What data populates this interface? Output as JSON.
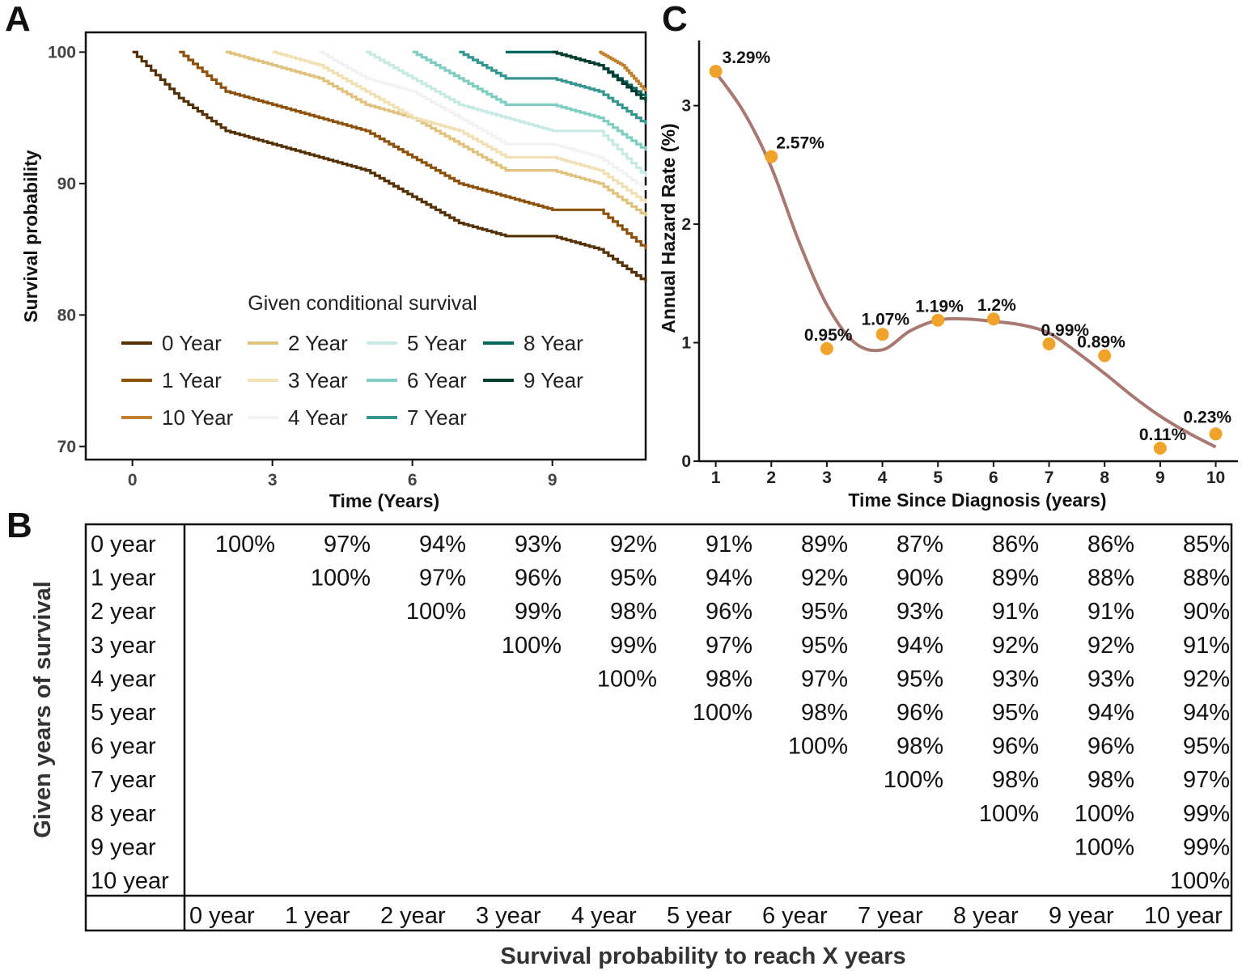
{
  "figure": {
    "panel_a_letter": "A",
    "panel_b_letter": "B",
    "panel_c_letter": "C"
  },
  "chart_data": [
    {
      "id": "A",
      "type": "line",
      "subtype": "kaplan-meier conditional survival curves",
      "xlabel": "Time (Years)",
      "ylabel": "Survival probability",
      "xlim": [
        -1,
        11
      ],
      "ylim": [
        69,
        101.5
      ],
      "xticks": [
        "0",
        "3",
        "6",
        "9"
      ],
      "yticks": [
        "100",
        "90",
        "80",
        "70"
      ],
      "legend_title": "Given conditional survival",
      "legend_position": "bottom-center inside plot",
      "series": [
        {
          "name": "0 Year",
          "color": "#543005",
          "x": [
            0,
            1,
            2,
            3,
            4,
            5,
            6,
            7,
            8,
            9,
            10,
            11
          ],
          "y": [
            100,
            96.5,
            94,
            93,
            92,
            91,
            89,
            87,
            86,
            86,
            85,
            82.5
          ]
        },
        {
          "name": "1 Year",
          "color": "#8c510a",
          "x": [
            1,
            2,
            3,
            4,
            5,
            6,
            7,
            8,
            9,
            10,
            11
          ],
          "y": [
            100,
            97,
            96,
            95,
            94,
            92,
            90,
            89,
            88,
            88,
            85
          ]
        },
        {
          "name": "10 Year",
          "color": "#bf812d",
          "x": [
            10,
            10.5,
            11
          ],
          "y": [
            100,
            99,
            97
          ]
        },
        {
          "name": "2 Year",
          "color": "#dfc27d",
          "x": [
            2,
            3,
            4,
            5,
            6,
            7,
            8,
            9,
            10,
            11
          ],
          "y": [
            100,
            99,
            98,
            96,
            95,
            93,
            91,
            91,
            90,
            87.5
          ]
        },
        {
          "name": "3 Year",
          "color": "#f2e0b5",
          "x": [
            3,
            4,
            5,
            6,
            7,
            8,
            9,
            10,
            11
          ],
          "y": [
            100,
            99,
            97,
            95,
            94,
            92,
            92,
            91,
            88.5
          ]
        },
        {
          "name": "4 Year",
          "color": "#f2f2f2",
          "x": [
            4,
            5,
            6,
            7,
            8,
            9,
            10,
            11
          ],
          "y": [
            100,
            98,
            97,
            95,
            93,
            93,
            92,
            89.5
          ]
        },
        {
          "name": "5 Year",
          "color": "#c7eae5",
          "x": [
            5,
            6,
            7,
            8,
            9,
            10,
            11
          ],
          "y": [
            100,
            98,
            96,
            95,
            94,
            94,
            90.5
          ]
        },
        {
          "name": "6 Year",
          "color": "#80cdc1",
          "x": [
            6,
            7,
            8,
            9,
            10,
            11
          ],
          "y": [
            100,
            98,
            96,
            96,
            95,
            92.5
          ]
        },
        {
          "name": "7 Year",
          "color": "#35978f",
          "x": [
            7,
            8,
            9,
            10,
            11
          ],
          "y": [
            100,
            98,
            98,
            97,
            94.5
          ]
        },
        {
          "name": "8 Year",
          "color": "#01665e",
          "x": [
            8,
            9,
            10,
            11
          ],
          "y": [
            100,
            100,
            99,
            96.5
          ]
        },
        {
          "name": "9 Year",
          "color": "#003c30",
          "x": [
            9,
            10,
            11
          ],
          "y": [
            100,
            99,
            96.2
          ]
        }
      ]
    },
    {
      "id": "B",
      "type": "table",
      "xlabel": "Survival probability to reach X years",
      "ylabel": "Given years of survival",
      "row_labels": [
        "0 year",
        "1 year",
        "2 year",
        "3 year",
        "4 year",
        "5 year",
        "6 year",
        "7 year",
        "8 year",
        "9 year",
        "10 year"
      ],
      "col_labels": [
        "0 year",
        "1 year",
        "2 year",
        "3 year",
        "4 year",
        "5 year",
        "6 year",
        "7 year",
        "8 year",
        "9 year",
        "10 year"
      ],
      "rows": [
        [
          "100%",
          "97%",
          "94%",
          "93%",
          "92%",
          "91%",
          "89%",
          "87%",
          "86%",
          "86%",
          "85%"
        ],
        [
          "",
          "100%",
          "97%",
          "96%",
          "95%",
          "94%",
          "92%",
          "90%",
          "89%",
          "88%",
          "88%"
        ],
        [
          "",
          "",
          "100%",
          "99%",
          "98%",
          "96%",
          "95%",
          "93%",
          "91%",
          "91%",
          "90%"
        ],
        [
          "",
          "",
          "",
          "100%",
          "99%",
          "97%",
          "95%",
          "94%",
          "92%",
          "92%",
          "91%"
        ],
        [
          "",
          "",
          "",
          "",
          "100%",
          "98%",
          "97%",
          "95%",
          "93%",
          "93%",
          "92%"
        ],
        [
          "",
          "",
          "",
          "",
          "",
          "100%",
          "98%",
          "96%",
          "95%",
          "94%",
          "94%"
        ],
        [
          "",
          "",
          "",
          "",
          "",
          "",
          "100%",
          "98%",
          "96%",
          "96%",
          "95%"
        ],
        [
          "",
          "",
          "",
          "",
          "",
          "",
          "",
          "100%",
          "98%",
          "98%",
          "97%"
        ],
        [
          "",
          "",
          "",
          "",
          "",
          "",
          "",
          "",
          "100%",
          "100%",
          "99%"
        ],
        [
          "",
          "",
          "",
          "",
          "",
          "",
          "",
          "",
          "",
          "100%",
          "99%"
        ],
        [
          "",
          "",
          "",
          "",
          "",
          "",
          "",
          "",
          "",
          "",
          "100%"
        ]
      ]
    },
    {
      "id": "C",
      "type": "scatter",
      "subtype": "points with smoothed trend line",
      "xlabel": "Time Since Diagnosis (years)",
      "ylabel": "Annual Hazard Rate (%)",
      "xlim": [
        0.7,
        10.4
      ],
      "ylim": [
        0,
        3.55
      ],
      "xticks": [
        "1",
        "2",
        "3",
        "4",
        "5",
        "6",
        "7",
        "8",
        "9",
        "10"
      ],
      "yticks": [
        "0",
        "1",
        "2",
        "3"
      ],
      "point_color": "#f0a32a",
      "line_color": "#a87872",
      "x": [
        1,
        2,
        3,
        4,
        5,
        6,
        7,
        8,
        9,
        10
      ],
      "y": [
        3.29,
        2.57,
        0.95,
        1.07,
        1.19,
        1.2,
        0.99,
        0.89,
        0.11,
        0.23
      ],
      "labels": [
        "3.29%",
        "2.57%",
        "0.95%",
        "1.07%",
        "1.19%",
        "1.2%",
        "0.99%",
        "0.89%",
        "0.11%",
        "0.23%"
      ],
      "smooth_x": [
        1,
        1.5,
        2,
        2.5,
        3,
        3.5,
        4,
        4.5,
        5,
        5.5,
        6,
        6.5,
        7,
        7.5,
        8,
        8.5,
        9,
        9.5,
        10
      ],
      "smooth_y": [
        3.28,
        2.95,
        2.48,
        1.85,
        1.32,
        1.0,
        0.94,
        1.1,
        1.19,
        1.2,
        1.18,
        1.15,
        1.08,
        0.92,
        0.74,
        0.55,
        0.38,
        0.24,
        0.12
      ]
    }
  ]
}
